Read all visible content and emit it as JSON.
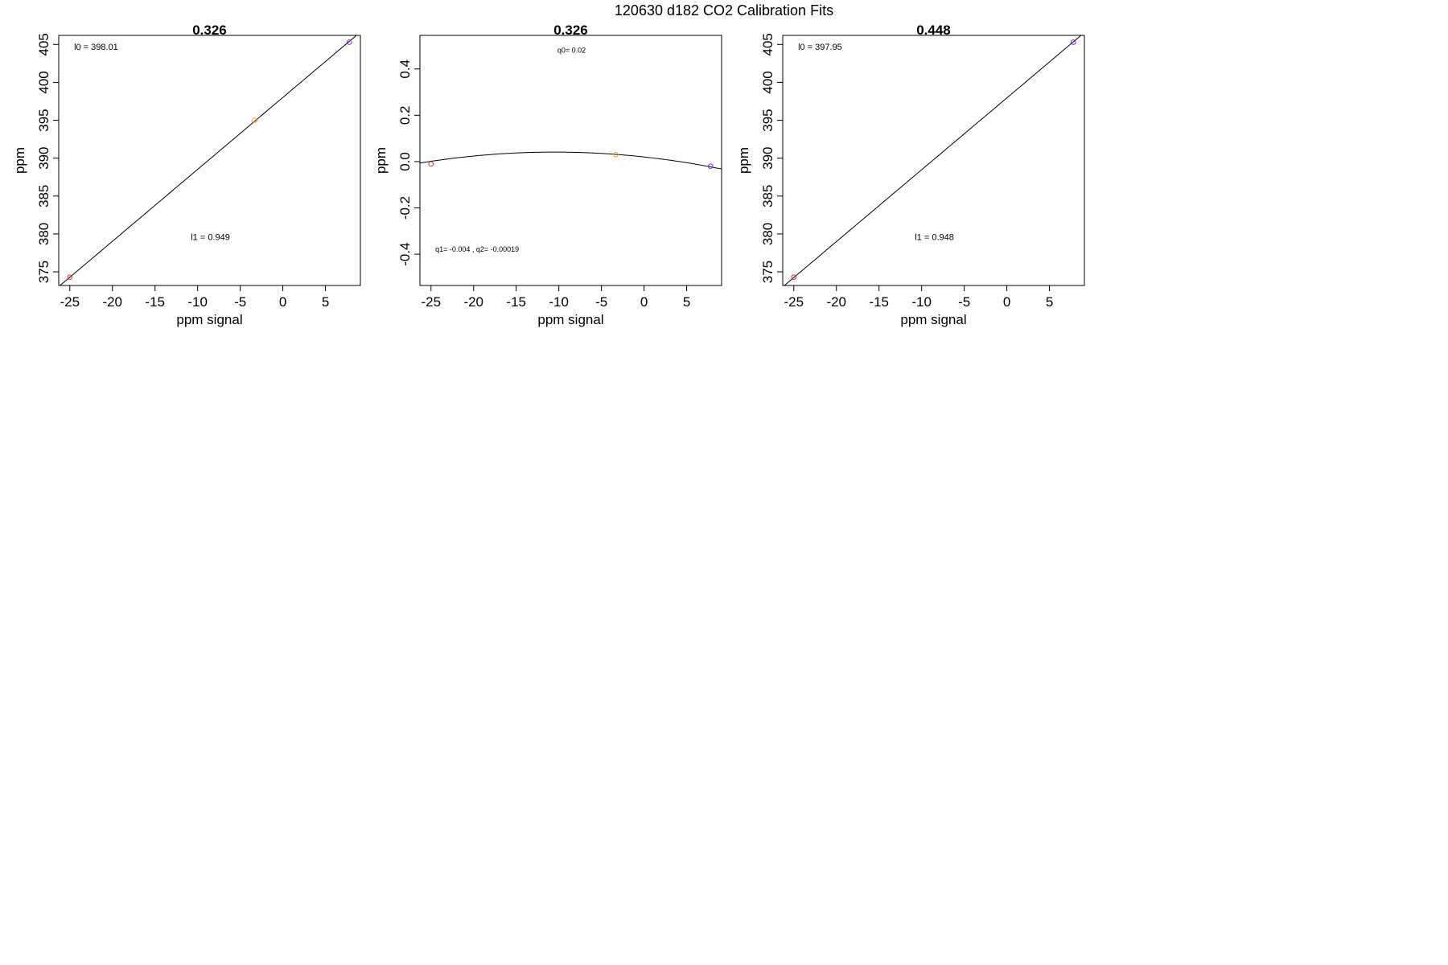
{
  "figure": {
    "suptitle": "120630   d182   CO2 Calibration Fits"
  },
  "chart_data": [
    {
      "type": "scatter",
      "title": "0.326",
      "xlabel": "ppm signal",
      "ylabel": "ppm",
      "xlim": [
        -26.3,
        9.1
      ],
      "ylim": [
        373.2,
        406.2
      ],
      "xticks": [
        -25,
        -20,
        -15,
        -10,
        -5,
        0,
        5
      ],
      "yticks": [
        375,
        380,
        385,
        390,
        395,
        400,
        405
      ],
      "ytick_labels": [
        "375",
        "380",
        "385",
        "390",
        "395",
        "400",
        "405"
      ],
      "points": [
        {
          "x": -25.0,
          "y": 374.3,
          "color": "#e0303a"
        },
        {
          "x": -3.3,
          "y": 395.0,
          "color": "#f5a623"
        },
        {
          "x": 7.8,
          "y": 405.3,
          "color": "#7b2fd1"
        }
      ],
      "fit_line": {
        "kind": "linear",
        "intercept": 398.01,
        "slope": 0.949
      },
      "annotations": [
        {
          "text": "l0 =  398.01",
          "x": -24.5,
          "y": 404.3,
          "size": "normal",
          "anchor": "start"
        },
        {
          "text": "l1 =  0.949",
          "x": -8.5,
          "y": 379.2,
          "size": "normal",
          "anchor": "middle"
        }
      ]
    },
    {
      "type": "scatter",
      "title": "0.326",
      "xlabel": "ppm signal",
      "ylabel": "ppm",
      "xlim": [
        -26.3,
        9.1
      ],
      "ylim": [
        -0.535,
        0.545
      ],
      "xticks": [
        -25,
        -20,
        -15,
        -10,
        -5,
        0,
        5
      ],
      "yticks": [
        -0.4,
        -0.2,
        0.0,
        0.2,
        0.4
      ],
      "ytick_labels": [
        "-0.4",
        "-0.2",
        "0.0",
        "0.2",
        "0.4"
      ],
      "points": [
        {
          "x": -25.0,
          "y": -0.01,
          "color": "#e0303a"
        },
        {
          "x": -3.3,
          "y": 0.03,
          "color": "#f5a623"
        },
        {
          "x": 7.8,
          "y": -0.02,
          "color": "#7b2fd1"
        }
      ],
      "fit_line": {
        "kind": "quadratic",
        "q0": 0.02,
        "q1": -0.004,
        "q2": -0.00019
      },
      "annotations": [
        {
          "text": "q0= 0.02",
          "x": -8.5,
          "y": 0.47,
          "size": "small",
          "anchor": "middle"
        },
        {
          "text": "q1= -0.004 , q2= -0.00019",
          "x": -24.5,
          "y": -0.39,
          "size": "small",
          "anchor": "start"
        }
      ]
    },
    {
      "type": "scatter",
      "title": "0.448",
      "xlabel": "ppm signal",
      "ylabel": "ppm",
      "xlim": [
        -26.3,
        9.1
      ],
      "ylim": [
        373.2,
        406.2
      ],
      "xticks": [
        -25,
        -20,
        -15,
        -10,
        -5,
        0,
        5
      ],
      "yticks": [
        375,
        380,
        385,
        390,
        395,
        400,
        405
      ],
      "ytick_labels": [
        "375",
        "380",
        "385",
        "390",
        "395",
        "400",
        "405"
      ],
      "points": [
        {
          "x": -25.0,
          "y": 374.3,
          "color": "#e0303a"
        },
        {
          "x": 7.8,
          "y": 405.3,
          "color": "#7b2fd1"
        }
      ],
      "fit_line": {
        "kind": "linear",
        "intercept": 397.95,
        "slope": 0.948
      },
      "annotations": [
        {
          "text": "l0 =  397.95",
          "x": -24.5,
          "y": 404.3,
          "size": "normal",
          "anchor": "start"
        },
        {
          "text": "l1 =  0.948",
          "x": -8.5,
          "y": 379.2,
          "size": "normal",
          "anchor": "middle"
        }
      ]
    }
  ]
}
